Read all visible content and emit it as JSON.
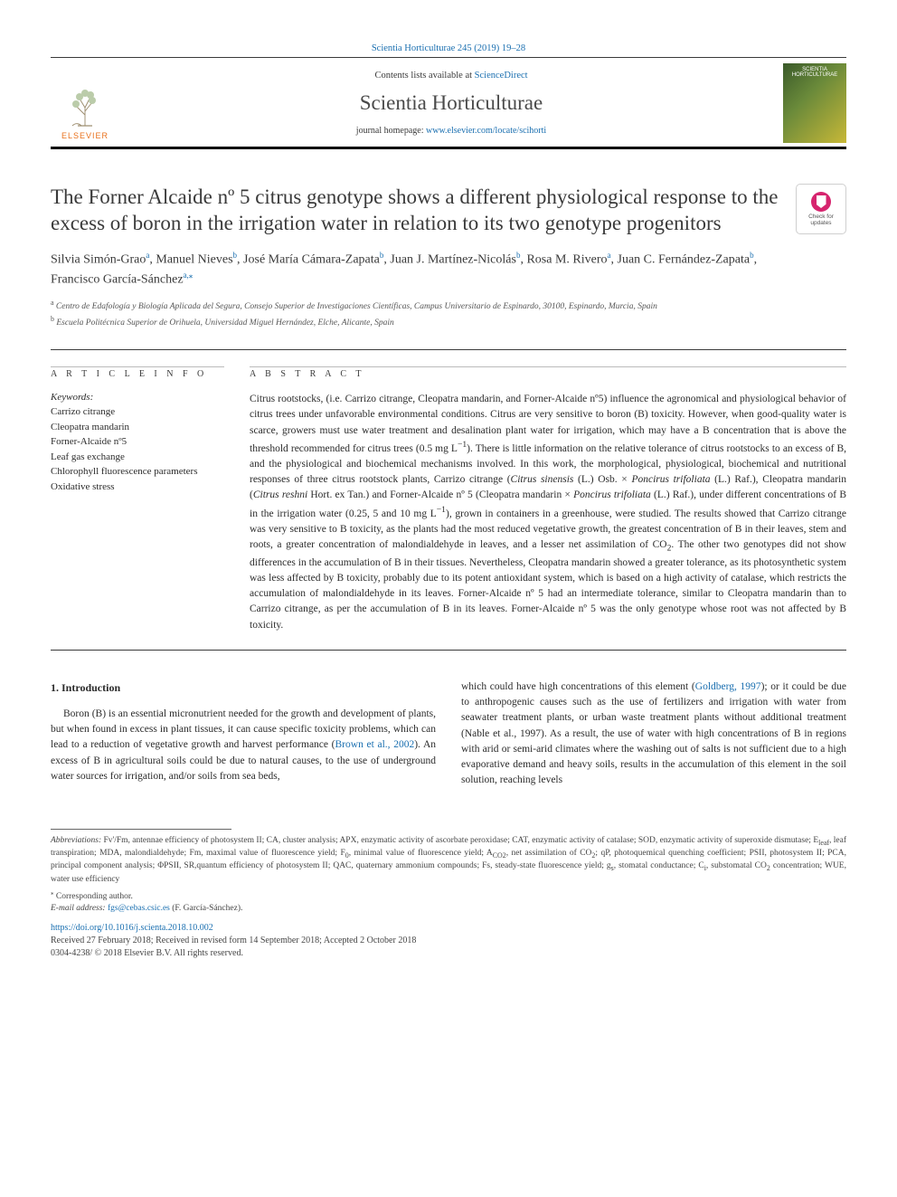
{
  "citation": {
    "journal_abbrev": "Scientia Horticulturae",
    "volume_pages": "245 (2019) 19–28"
  },
  "header": {
    "contents_prefix": "Contents lists available at ",
    "contents_link": "ScienceDirect",
    "journal_name": "Scientia Horticulturae",
    "homepage_prefix": "journal homepage: ",
    "homepage_url": "www.elsevier.com/locate/scihorti",
    "elsevier_label": "ELSEVIER",
    "cover_label": "SCIENTIA HORTICULTURAE"
  },
  "check_updates": {
    "line1": "Check for",
    "line2": "updates"
  },
  "title": "The Forner Alcaide nº 5 citrus genotype shows a different physiological response to the excess of boron in the irrigation water in relation to its two genotype progenitors",
  "authors_html": "Silvia Simón-Grao<sup class='affref'><a>a</a></sup>, Manuel Nieves<sup class='affref'><a>b</a></sup>, José María Cámara-Zapata<sup class='affref'><a>b</a></sup>, Juan J. Martínez-Nicolás<sup class='affref'><a>b</a></sup>, Rosa M. Rivero<sup class='affref'><a>a</a></sup>, Juan C. Fernández-Zapata<sup class='affref'><a>b</a></sup>, Francisco García-Sánchez<sup class='affref'><a>a,</a></sup><sup><a>⁎</a></sup>",
  "affiliations": {
    "a": "Centro de Edafología y Biología Aplicada del Segura, Consejo Superior de Investigaciones Científicas, Campus Universitario de Espinardo, 30100, Espinardo, Murcia, Spain",
    "b": "Escuela Politécnica Superior de Orihuela, Universidad Miguel Hernández, Elche, Alicante, Spain"
  },
  "article_info": {
    "head": "A R T I C L E  I N F O",
    "keywords_label": "Keywords:",
    "keywords": [
      "Carrizo citrange",
      "Cleopatra mandarin",
      "Forner-Alcaide nº5",
      "Leaf gas exchange",
      "Chlorophyll fluorescence parameters",
      "Oxidative stress"
    ]
  },
  "abstract": {
    "head": "A B S T R A C T",
    "text_html": "Citrus rootstocks, (i.e. Carrizo citrange, Cleopatra mandarin, and Forner-Alcaide nº5) influence the agronomical and physiological behavior of citrus trees under unfavorable environmental conditions. Citrus are very sensitive to boron (B) toxicity. However, when good-quality water is scarce, growers must use water treatment and desalination plant water for irrigation, which may have a B concentration that is above the threshold recommended for citrus trees (0.5 mg L<sup>−1</sup>). There is little information on the relative tolerance of citrus rootstocks to an excess of B, and the physiological and biochemical mechanisms involved. In this work, the morphological, physiological, biochemical and nutritional responses of three citrus rootstock plants, Carrizo citrange (<i>Citrus sinensis</i> (L.) Osb. × <i>Poncirus trifoliata</i> (L.) Raf.), Cleopatra mandarin (<i>Citrus reshni</i> Hort. ex Tan.) and Forner-Alcaide nº 5 (Cleopatra mandarin × <i>Poncirus trifoliata</i> (L.) Raf.), under different concentrations of B in the irrigation water (0.25, 5 and 10 mg L<sup>−1</sup>), grown in containers in a greenhouse, were studied. The results showed that Carrizo citrange was very sensitive to B toxicity, as the plants had the most reduced vegetative growth, the greatest concentration of B in their leaves, stem and roots, a greater concentration of malondialdehyde in leaves, and a lesser net assimilation of CO<sub>2</sub>. The other two genotypes did not show differences in the accumulation of B in their tissues. Nevertheless, Cleopatra mandarin showed a greater tolerance, as its photosynthetic system was less affected by B toxicity, probably due to its potent antioxidant system, which is based on a high activity of catalase, which restricts the accumulation of malondialdehyde in its leaves. Forner-Alcaide nº 5 had an intermediate tolerance, similar to Cleopatra mandarin than to Carrizo citrange, as per the accumulation of B in its leaves. Forner-Alcaide nº 5 was the only genotype whose root was not affected by B toxicity."
  },
  "introduction": {
    "heading": "1. Introduction",
    "col1_html": "Boron (B) is an essential micronutrient needed for the growth and development of plants, but when found in excess in plant tissues, it can cause specific toxicity problems, which can lead to a reduction of vegetative growth and harvest performance (<a>Brown et al., 2002</a>). An excess of B in agricultural soils could be due to natural causes, to the use of underground water sources for irrigation, and/or soils from sea beds,",
    "col2_html": "which could have high concentrations of this element (<a>Goldberg, 1997</a>); or it could be due to anthropogenic causes such as the use of fertilizers and irrigation with water from seawater treatment plants, or urban waste treatment plants without additional treatment (Nable et al., 1997). As a result, the use of water with high concentrations of B in regions with arid or semi-arid climates where the washing out of salts is not sufficient due to a high evaporative demand and heavy soils, results in the accumulation of this element in the soil solution, reaching levels"
  },
  "footnotes": {
    "abbrev_label": "Abbreviations:",
    "abbrev_text": " Fv'/Fm, antennae efficiency of photosystem II; CA, cluster analysis; APX, enzymatic activity of ascorbate peroxidase; CAT, enzymatic activity of catalase; SOD, enzymatic activity of superoxide dismutase; E<sub>leaf</sub>, leaf transpiration; MDA, malondialdehyde; Fm, maximal value of fluorescence yield; F<sub>0</sub>, minimal value of fluorescence yield; A<sub>CO2</sub>, net assimilation of CO<sub>2</sub>; qP, photoquemical quenching coefficient; PSII, photosystem II; PCA, principal component analysis; ΦPSII, SR,quantum efficiency of photosystem II; QAC, quaternary ammonium compounds; Fs, steady-state fluorescence yield; g<sub>s</sub>, stomatal conductance; C<sub>i</sub>, substomatal CO<sub>2</sub> concentration; WUE, water use efficiency",
    "corr": "Corresponding author.",
    "email_label": "E-mail address:",
    "email": "fgs@cebas.csic.es",
    "email_name": "(F. García-Sánchez)."
  },
  "doi": {
    "url": "https://doi.org/10.1016/j.scienta.2018.10.002",
    "received": "Received 27 February 2018; Received in revised form 14 September 2018; Accepted 2 October 2018",
    "issn": "0304-4238/ © 2018 Elsevier B.V. All rights reserved."
  },
  "colors": {
    "link": "#1a6fb0",
    "rule": "#3a3a3a",
    "elsevier_orange": "#e9711c",
    "check_pink": "#d6246e"
  }
}
